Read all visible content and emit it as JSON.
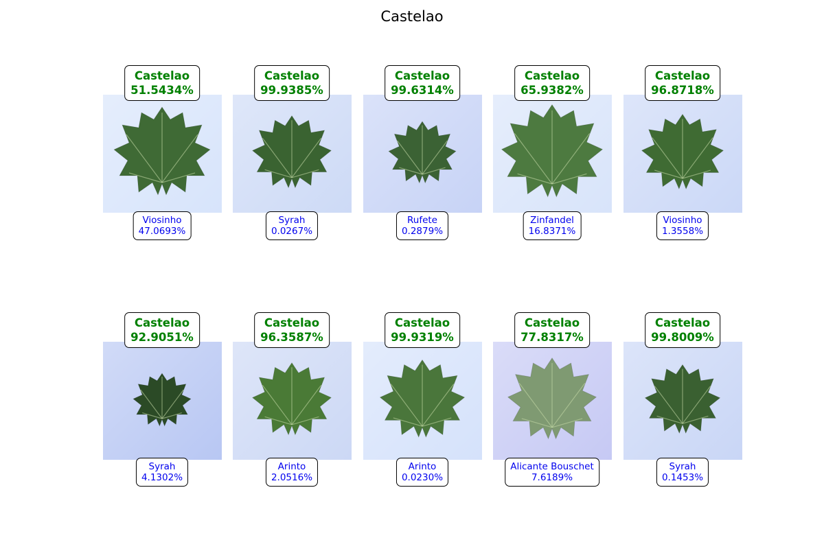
{
  "title": "Castelao",
  "samples": [
    {
      "true_label": "Castelao",
      "true_pct": "51.5434%",
      "pred_label": "Viosinho",
      "pred_pct": "47.0693%",
      "bg": "#d7e4fb",
      "leaf": "#3f6a35"
    },
    {
      "true_label": "Castelao",
      "true_pct": "99.9385%",
      "pred_label": "Syrah",
      "pred_pct": "0.0267%",
      "bg": "#cddaf6",
      "leaf": "#3a6331"
    },
    {
      "true_label": "Castelao",
      "true_pct": "99.6314%",
      "pred_label": "Rufete",
      "pred_pct": "0.2879%",
      "bg": "#c7d3f6",
      "leaf": "#3b6234"
    },
    {
      "true_label": "Castelao",
      "true_pct": "65.9382%",
      "pred_label": "Zinfandel",
      "pred_pct": "16.8371%",
      "bg": "#d8e4fa",
      "leaf": "#4d7a40"
    },
    {
      "true_label": "Castelao",
      "true_pct": "96.8718%",
      "pred_label": "Viosinho",
      "pred_pct": "1.3558%",
      "bg": "#cbd8f7",
      "leaf": "#3f6b33"
    },
    {
      "true_label": "Castelao",
      "true_pct": "92.9051%",
      "pred_label": "Syrah",
      "pred_pct": "4.1302%",
      "bg": "#b8c7f3",
      "leaf": "#2b4a26"
    },
    {
      "true_label": "Castelao",
      "true_pct": "96.3587%",
      "pred_label": "Arinto",
      "pred_pct": "2.0516%",
      "bg": "#ccd8f5",
      "leaf": "#4a7a36"
    },
    {
      "true_label": "Castelao",
      "true_pct": "99.9319%",
      "pred_label": "Arinto",
      "pred_pct": "0.0230%",
      "bg": "#d5e2fb",
      "leaf": "#4a763b"
    },
    {
      "true_label": "Castelao",
      "true_pct": "77.8317%",
      "pred_label": "Alicante Bouschet",
      "pred_pct": "7.6189%",
      "bg": "#c6c9f4",
      "leaf": "#7f9a72"
    },
    {
      "true_label": "Castelao",
      "true_pct": "99.8009%",
      "pred_label": "Syrah",
      "pred_pct": "0.1453%",
      "bg": "#c9d6f6",
      "leaf": "#3a6031"
    }
  ]
}
